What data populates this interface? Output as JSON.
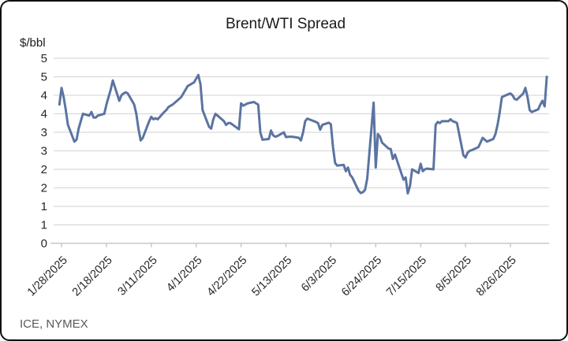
{
  "frame": {
    "title": "Brent/WTI Spread",
    "y_unit_label": "$/bbl",
    "source_note": "ICE, NYMEX"
  },
  "colors": {
    "line": "#5B74A1",
    "gridline": "#D9D9D9",
    "axis_line": "#C9C9C9",
    "title_text": "#1A1A1A",
    "axis_text": "#262626",
    "source_text": "#595959",
    "border": "#0F0F0F",
    "background": "#FFFFFF"
  },
  "chart_data": {
    "type": "line",
    "title": "Brent/WTI Spread",
    "xlabel": "",
    "ylabel": "$/bbl",
    "ylim": [
      0,
      5
    ],
    "y_tick_step": 0.5,
    "y_tick_labels_top_to_bottom": [
      "5",
      "5",
      "4",
      "4",
      "3",
      "3",
      "2",
      "2",
      "1",
      "1",
      "0"
    ],
    "x_tick_labels": [
      "1/28/2025",
      "2/18/2025",
      "3/11/2025",
      "4/1/2025",
      "4/22/2025",
      "5/13/2025",
      "6/3/2025",
      "6/24/2025",
      "7/15/2025",
      "8/5/2025",
      "8/26/2025"
    ],
    "x_axis_range_hint": [
      "1/24/2025",
      "9/14/2025"
    ],
    "grid": "horizontal-only",
    "legend": "none",
    "series": [
      {
        "name": "Brent/WTI Spread ($/bbl)",
        "points": [
          [
            "1/27/2025",
            3.75
          ],
          [
            "1/28/2025",
            4.2
          ],
          [
            "1/29/2025",
            3.95
          ],
          [
            "1/30/2025",
            3.6
          ],
          [
            "1/31/2025",
            3.2
          ],
          [
            "2/3/2025",
            2.75
          ],
          [
            "2/4/2025",
            2.8
          ],
          [
            "2/5/2025",
            3.1
          ],
          [
            "2/6/2025",
            3.3
          ],
          [
            "2/7/2025",
            3.5
          ],
          [
            "2/10/2025",
            3.45
          ],
          [
            "2/11/2025",
            3.55
          ],
          [
            "2/12/2025",
            3.4
          ],
          [
            "2/13/2025",
            3.4
          ],
          [
            "2/14/2025",
            3.45
          ],
          [
            "2/17/2025",
            3.5
          ],
          [
            "2/18/2025",
            3.75
          ],
          [
            "2/19/2025",
            3.95
          ],
          [
            "2/20/2025",
            4.15
          ],
          [
            "2/21/2025",
            4.4
          ],
          [
            "2/24/2025",
            3.85
          ],
          [
            "2/25/2025",
            4.0
          ],
          [
            "2/26/2025",
            4.05
          ],
          [
            "2/27/2025",
            4.08
          ],
          [
            "2/28/2025",
            4.05
          ],
          [
            "3/3/2025",
            3.75
          ],
          [
            "3/4/2025",
            3.5
          ],
          [
            "3/5/2025",
            3.1
          ],
          [
            "3/6/2025",
            2.78
          ],
          [
            "3/7/2025",
            2.85
          ],
          [
            "3/10/2025",
            3.3
          ],
          [
            "3/11/2025",
            3.42
          ],
          [
            "3/12/2025",
            3.35
          ],
          [
            "3/13/2025",
            3.38
          ],
          [
            "3/14/2025",
            3.35
          ],
          [
            "3/17/2025",
            3.55
          ],
          [
            "3/18/2025",
            3.6
          ],
          [
            "3/19/2025",
            3.68
          ],
          [
            "3/20/2025",
            3.72
          ],
          [
            "3/21/2025",
            3.75
          ],
          [
            "3/24/2025",
            3.9
          ],
          [
            "3/25/2025",
            3.95
          ],
          [
            "3/26/2025",
            4.05
          ],
          [
            "3/27/2025",
            4.15
          ],
          [
            "3/28/2025",
            4.25
          ],
          [
            "3/31/2025",
            4.35
          ],
          [
            "4/1/2025",
            4.45
          ],
          [
            "4/2/2025",
            4.55
          ],
          [
            "4/3/2025",
            4.3
          ],
          [
            "4/4/2025",
            3.6
          ],
          [
            "4/7/2025",
            3.15
          ],
          [
            "4/8/2025",
            3.1
          ],
          [
            "4/9/2025",
            3.35
          ],
          [
            "4/10/2025",
            3.5
          ],
          [
            "4/11/2025",
            3.45
          ],
          [
            "4/14/2025",
            3.3
          ],
          [
            "4/15/2025",
            3.2
          ],
          [
            "4/16/2025",
            3.25
          ],
          [
            "4/17/2025",
            3.25
          ],
          [
            "4/21/2025",
            3.08
          ],
          [
            "4/22/2025",
            3.78
          ],
          [
            "4/23/2025",
            3.72
          ],
          [
            "4/24/2025",
            3.75
          ],
          [
            "4/25/2025",
            3.78
          ],
          [
            "4/28/2025",
            3.82
          ],
          [
            "4/29/2025",
            3.78
          ],
          [
            "4/30/2025",
            3.75
          ],
          [
            "5/1/2025",
            3.0
          ],
          [
            "5/2/2025",
            2.8
          ],
          [
            "5/5/2025",
            2.82
          ],
          [
            "5/6/2025",
            3.05
          ],
          [
            "5/7/2025",
            2.92
          ],
          [
            "5/8/2025",
            2.88
          ],
          [
            "5/9/2025",
            2.9
          ],
          [
            "5/12/2025",
            3.0
          ],
          [
            "5/13/2025",
            2.87
          ],
          [
            "5/14/2025",
            2.88
          ],
          [
            "5/15/2025",
            2.88
          ],
          [
            "5/16/2025",
            2.88
          ],
          [
            "5/19/2025",
            2.85
          ],
          [
            "5/20/2025",
            2.78
          ],
          [
            "5/21/2025",
            3.0
          ],
          [
            "5/22/2025",
            3.3
          ],
          [
            "5/23/2025",
            3.37
          ],
          [
            "5/27/2025",
            3.28
          ],
          [
            "5/28/2025",
            3.25
          ],
          [
            "5/29/2025",
            3.07
          ],
          [
            "5/30/2025",
            3.2
          ],
          [
            "6/2/2025",
            3.26
          ],
          [
            "6/3/2025",
            3.22
          ],
          [
            "6/4/2025",
            2.6
          ],
          [
            "6/5/2025",
            2.17
          ],
          [
            "6/6/2025",
            2.1
          ],
          [
            "6/9/2025",
            2.12
          ],
          [
            "6/10/2025",
            1.95
          ],
          [
            "6/11/2025",
            2.05
          ],
          [
            "6/12/2025",
            1.85
          ],
          [
            "6/13/2025",
            1.78
          ],
          [
            "6/16/2025",
            1.42
          ],
          [
            "6/17/2025",
            1.36
          ],
          [
            "6/18/2025",
            1.38
          ],
          [
            "6/19/2025",
            1.45
          ],
          [
            "6/20/2025",
            1.75
          ],
          [
            "6/23/2025",
            3.8
          ],
          [
            "6/24/2025",
            2.05
          ],
          [
            "6/25/2025",
            2.95
          ],
          [
            "6/26/2025",
            2.88
          ],
          [
            "6/27/2025",
            2.72
          ],
          [
            "6/30/2025",
            2.56
          ],
          [
            "7/1/2025",
            2.55
          ],
          [
            "7/2/2025",
            2.28
          ],
          [
            "7/3/2025",
            2.4
          ],
          [
            "7/7/2025",
            1.72
          ],
          [
            "7/8/2025",
            1.78
          ],
          [
            "7/9/2025",
            1.35
          ],
          [
            "7/10/2025",
            1.55
          ],
          [
            "7/11/2025",
            2.0
          ],
          [
            "7/14/2025",
            1.9
          ],
          [
            "7/15/2025",
            2.15
          ],
          [
            "7/16/2025",
            1.95
          ],
          [
            "7/17/2025",
            2.0
          ],
          [
            "7/18/2025",
            2.02
          ],
          [
            "7/21/2025",
            2.0
          ],
          [
            "7/22/2025",
            3.2
          ],
          [
            "7/23/2025",
            3.28
          ],
          [
            "7/24/2025",
            3.25
          ],
          [
            "7/25/2025",
            3.3
          ],
          [
            "7/28/2025",
            3.3
          ],
          [
            "7/29/2025",
            3.35
          ],
          [
            "7/30/2025",
            3.3
          ],
          [
            "7/31/2025",
            3.28
          ],
          [
            "8/1/2025",
            3.25
          ],
          [
            "8/4/2025",
            2.38
          ],
          [
            "8/5/2025",
            2.32
          ],
          [
            "8/6/2025",
            2.45
          ],
          [
            "8/7/2025",
            2.5
          ],
          [
            "8/8/2025",
            2.52
          ],
          [
            "8/11/2025",
            2.6
          ],
          [
            "8/12/2025",
            2.72
          ],
          [
            "8/13/2025",
            2.85
          ],
          [
            "8/14/2025",
            2.8
          ],
          [
            "8/15/2025",
            2.75
          ],
          [
            "8/18/2025",
            2.82
          ],
          [
            "8/19/2025",
            2.95
          ],
          [
            "8/20/2025",
            3.2
          ],
          [
            "8/21/2025",
            3.55
          ],
          [
            "8/22/2025",
            3.95
          ],
          [
            "8/25/2025",
            4.03
          ],
          [
            "8/26/2025",
            4.05
          ],
          [
            "8/27/2025",
            4.0
          ],
          [
            "8/28/2025",
            3.9
          ],
          [
            "8/29/2025",
            3.88
          ],
          [
            "9/1/2025",
            4.05
          ],
          [
            "9/2/2025",
            4.2
          ],
          [
            "9/3/2025",
            3.95
          ],
          [
            "9/4/2025",
            3.6
          ],
          [
            "9/5/2025",
            3.55
          ],
          [
            "9/8/2025",
            3.62
          ],
          [
            "9/9/2025",
            3.75
          ],
          [
            "9/10/2025",
            3.85
          ],
          [
            "9/11/2025",
            3.7
          ],
          [
            "9/12/2025",
            4.5
          ]
        ]
      }
    ]
  }
}
